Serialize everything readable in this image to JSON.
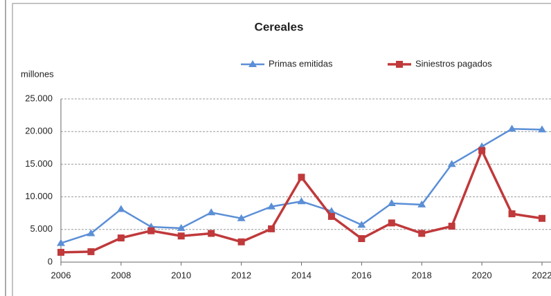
{
  "chart_data": {
    "type": "line",
    "title": "Cereales",
    "y_label": "millones",
    "x": [
      2006,
      2007,
      2008,
      2009,
      2010,
      2011,
      2012,
      2013,
      2014,
      2015,
      2016,
      2017,
      2018,
      2019,
      2020,
      2021,
      2022
    ],
    "series": [
      {
        "name": "Primas emitidas",
        "color": "#5b8fd6",
        "marker": "triangle",
        "values": [
          2900,
          4400,
          8100,
          5400,
          5200,
          7600,
          6700,
          8500,
          9300,
          7800,
          5700,
          9000,
          8800,
          15000,
          17700,
          20400,
          20300
        ]
      },
      {
        "name": "Siniestros pagados",
        "color": "#c0393b",
        "marker": "square",
        "values": [
          1500,
          1600,
          3700,
          4800,
          4000,
          4400,
          3100,
          5100,
          13000,
          7000,
          3600,
          6000,
          4400,
          5500,
          17100,
          7400,
          6700
        ]
      }
    ],
    "xlim": [
      2006,
      2022
    ],
    "xticks": [
      2006,
      2008,
      2010,
      2012,
      2014,
      2016,
      2018,
      2020,
      2022
    ],
    "ylim": [
      0,
      25000
    ],
    "yticks": [
      0,
      {
        "value": 5000,
        "label": "5.000"
      },
      {
        "value": 10000,
        "label": "10.000"
      },
      {
        "value": 15000,
        "label": "15.000"
      },
      {
        "value": 20000,
        "label": "20.000"
      },
      {
        "value": 25000,
        "label": "25.000"
      }
    ],
    "grid": true
  }
}
